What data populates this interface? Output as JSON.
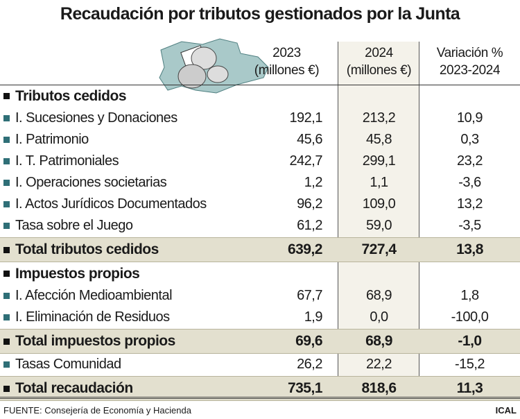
{
  "title": "Recaudación por tributos gestionados por la Junta",
  "chart_data": {
    "type": "table",
    "title": "Recaudación por tributos gestionados por la Junta",
    "columns": [
      {
        "line1": "2023",
        "line2": "(millones €)"
      },
      {
        "line1": "2024",
        "line2": "(millones €)"
      },
      {
        "line1": "Variación %",
        "line2": "2023-2024"
      }
    ],
    "rows": [
      {
        "kind": "section",
        "label": "Tributos cedidos"
      },
      {
        "kind": "item",
        "label": "I. Sucesiones y Donaciones",
        "values": [
          "192,1",
          "213,2",
          "10,9"
        ]
      },
      {
        "kind": "item",
        "label": "I. Patrimonio",
        "values": [
          "45,6",
          "45,8",
          "0,3"
        ]
      },
      {
        "kind": "item",
        "label": "I. T. Patrimoniales",
        "values": [
          "242,7",
          "299,1",
          "23,2"
        ]
      },
      {
        "kind": "item",
        "label": "I. Operaciones societarias",
        "values": [
          "1,2",
          "1,1",
          "-3,6"
        ]
      },
      {
        "kind": "item",
        "label": "I. Actos Jurídicos Documentados",
        "values": [
          "96,2",
          "109,0",
          "13,2"
        ]
      },
      {
        "kind": "item",
        "label": "Tasa sobre el Juego",
        "values": [
          "61,2",
          "59,0",
          "-3,5"
        ]
      },
      {
        "kind": "total",
        "label": "Total tributos cedidos",
        "values": [
          "639,2",
          "727,4",
          "13,8"
        ]
      },
      {
        "kind": "section",
        "label": "Impuestos propios"
      },
      {
        "kind": "item",
        "label": "I. Afección Medioambiental",
        "values": [
          "67,7",
          "68,9",
          "1,8"
        ]
      },
      {
        "kind": "item",
        "label": "I. Eliminación de Residuos",
        "values": [
          "1,9",
          "0,0",
          "-100,0"
        ]
      },
      {
        "kind": "total",
        "label": "Total impuestos propios",
        "values": [
          "69,6",
          "68,9",
          "-1,0"
        ]
      },
      {
        "kind": "item",
        "label": "Tasas Comunidad",
        "values": [
          "26,2",
          "22,2",
          "-15,2"
        ]
      },
      {
        "kind": "total",
        "label": "Total recaudación",
        "values": [
          "735,1",
          "818,6",
          "11,3"
        ]
      }
    ]
  },
  "colors": {
    "bullet_item": "#2f6f77",
    "total_row": "#e3e0cf",
    "highlight_column": "#f4f2ea",
    "map": "#a9c9c9"
  },
  "footer": {
    "source": "FUENTE: Consejería de Economía y Hacienda",
    "credit": "ICAL"
  }
}
